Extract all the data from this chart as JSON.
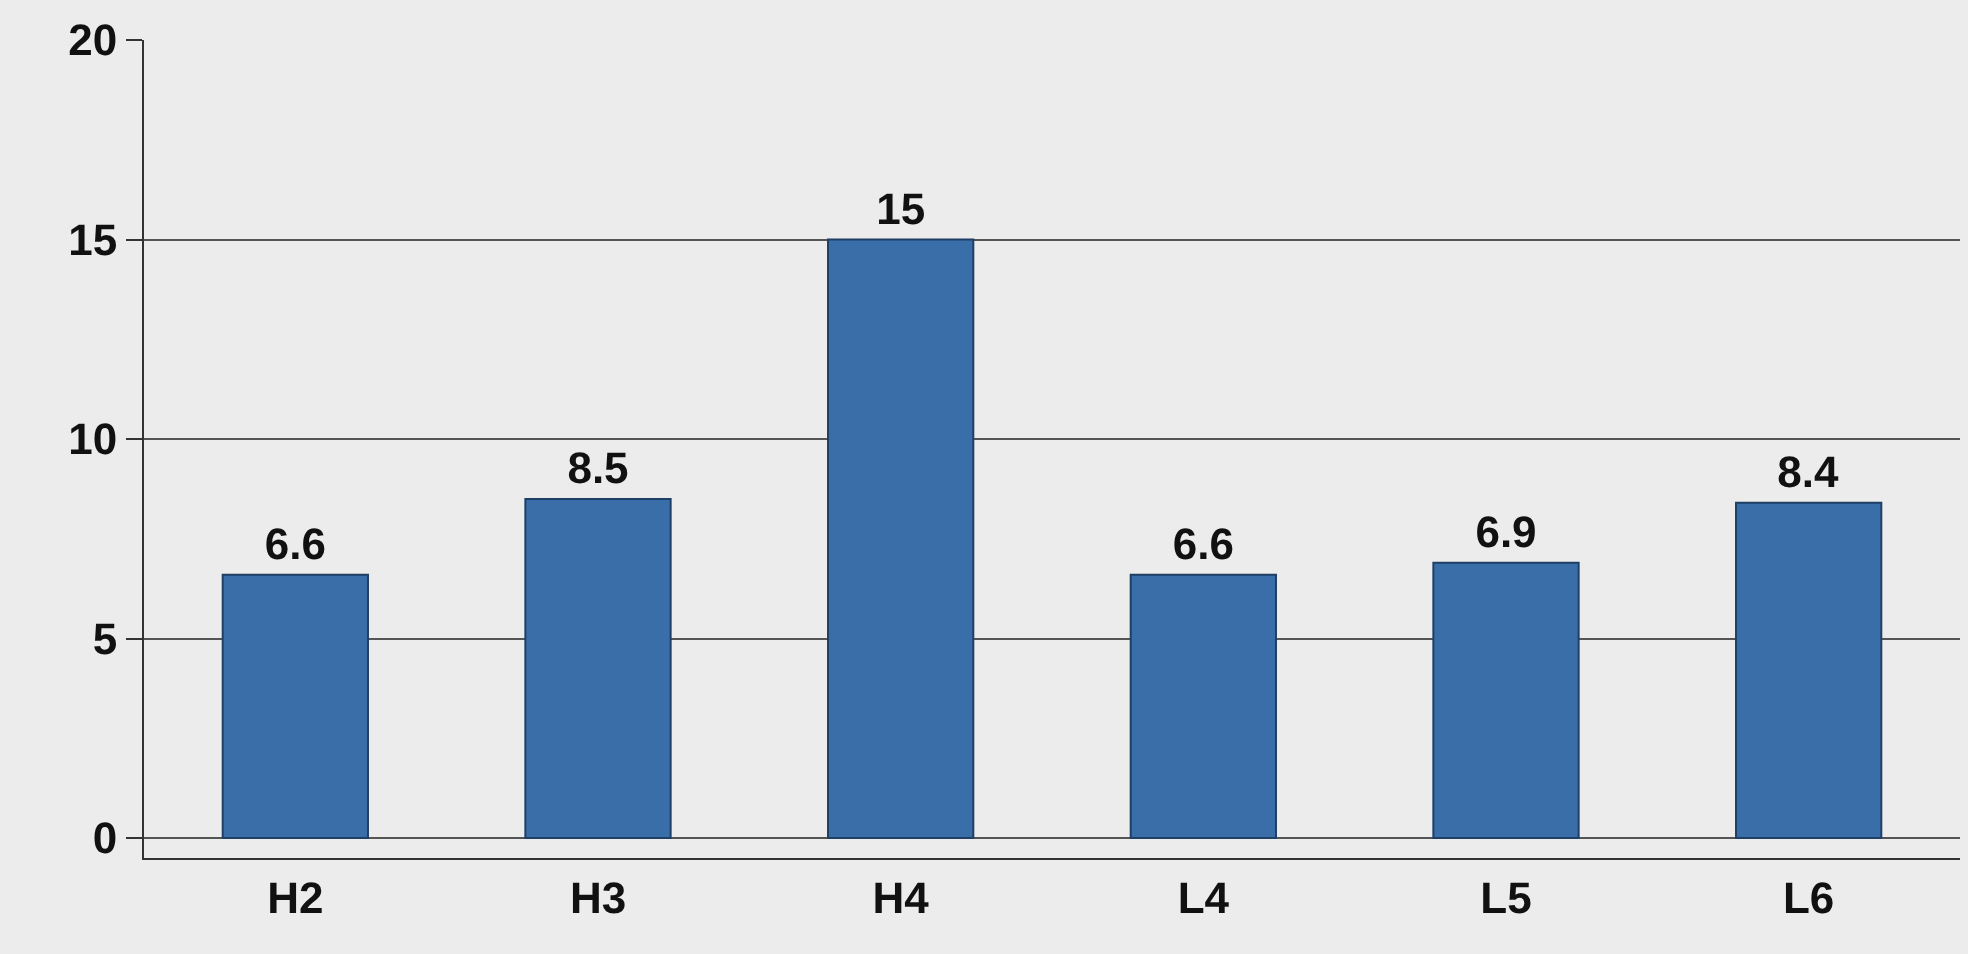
{
  "chart_data": {
    "type": "bar",
    "categories": [
      "H2",
      "H3",
      "H4",
      "L4",
      "L5",
      "L6"
    ],
    "values": [
      6.6,
      8.5,
      15,
      6.6,
      6.9,
      8.4
    ],
    "color": "#3a6ea8",
    "ylim": [
      -0.5,
      20
    ],
    "yticks": [
      0,
      5,
      10,
      15,
      20
    ],
    "grid": "y",
    "data_labels": true
  }
}
